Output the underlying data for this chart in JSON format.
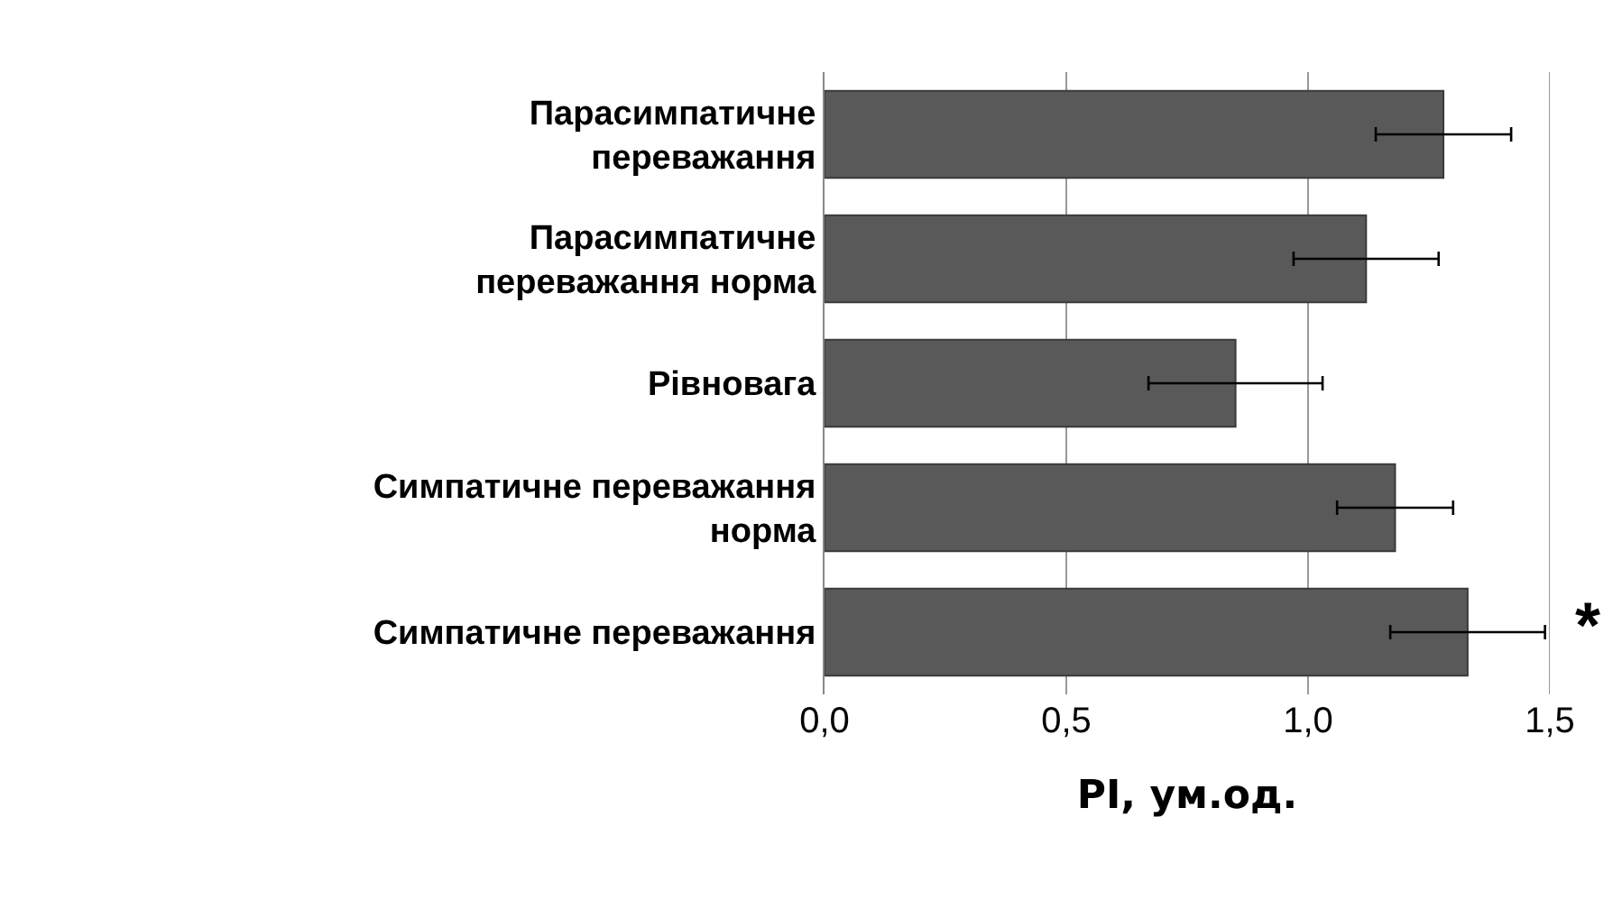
{
  "chart_data": {
    "type": "bar",
    "orientation": "horizontal",
    "xlabel": "PI, ум.од.",
    "categories": [
      "Парасимпатичне\nпереважання",
      "Парасимпатичне\nпереважання норма",
      "Рівновага",
      "Симпатичне переважання\nнорма",
      "Симпатичне переважання"
    ],
    "values": [
      1.28,
      1.12,
      0.85,
      1.18,
      1.33
    ],
    "errors": [
      0.14,
      0.15,
      0.18,
      0.12,
      0.16
    ],
    "color": "#595959",
    "xlim": [
      0,
      1.5
    ],
    "xticks": [
      {
        "value": 0,
        "label": "0,0"
      },
      {
        "value": 0.5,
        "label": "0,5"
      },
      {
        "value": 1,
        "label": "1,0"
      },
      {
        "value": 1.5,
        "label": "1,5"
      }
    ],
    "grid": "x",
    "annotations": [
      "*"
    ]
  }
}
